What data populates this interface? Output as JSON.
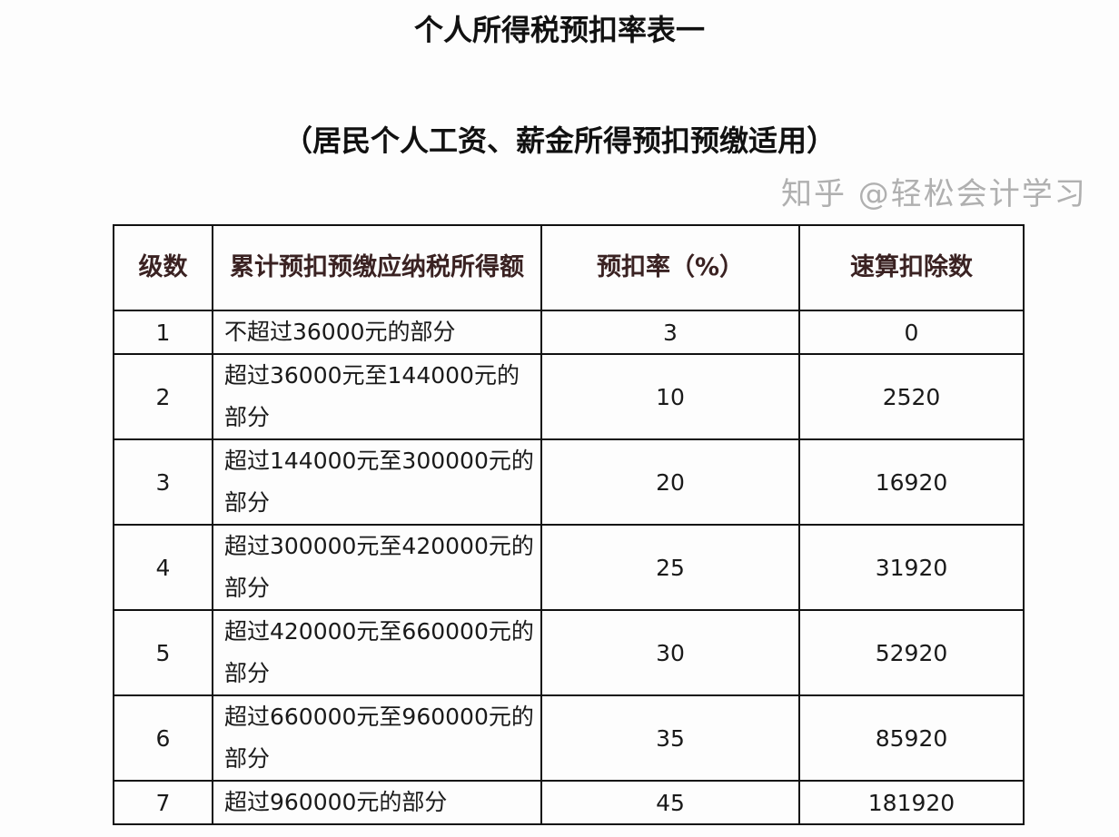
{
  "title": "个人所得税预扣率表一",
  "subtitle": "（居民个人工资、薪金所得预扣预缴适用）",
  "table": {
    "headers": [
      "级数",
      "累计预扣预缴应纳税所得额",
      "预扣率（%）",
      "速算扣除数"
    ],
    "rows": [
      {
        "level": "1",
        "range": "不超过36000元的部分",
        "rate": "3",
        "deduction": "0"
      },
      {
        "level": "2",
        "range": "超过36000元至144000元的部分",
        "rate": "10",
        "deduction": "2520"
      },
      {
        "level": "3",
        "range": "超过144000元至300000元的部分",
        "rate": "20",
        "deduction": "16920"
      },
      {
        "level": "4",
        "range": "超过300000元至420000元的部分",
        "rate": "25",
        "deduction": "31920"
      },
      {
        "level": "5",
        "range": "超过420000元至660000元的部分",
        "rate": "30",
        "deduction": "52920"
      },
      {
        "level": "6",
        "range": "超过660000元至960000元的部分",
        "rate": "35",
        "deduction": "85920"
      },
      {
        "level": "7",
        "range": "超过960000元的部分",
        "rate": "45",
        "deduction": "181920"
      }
    ]
  },
  "watermark": "知乎 @轻松会计学习"
}
